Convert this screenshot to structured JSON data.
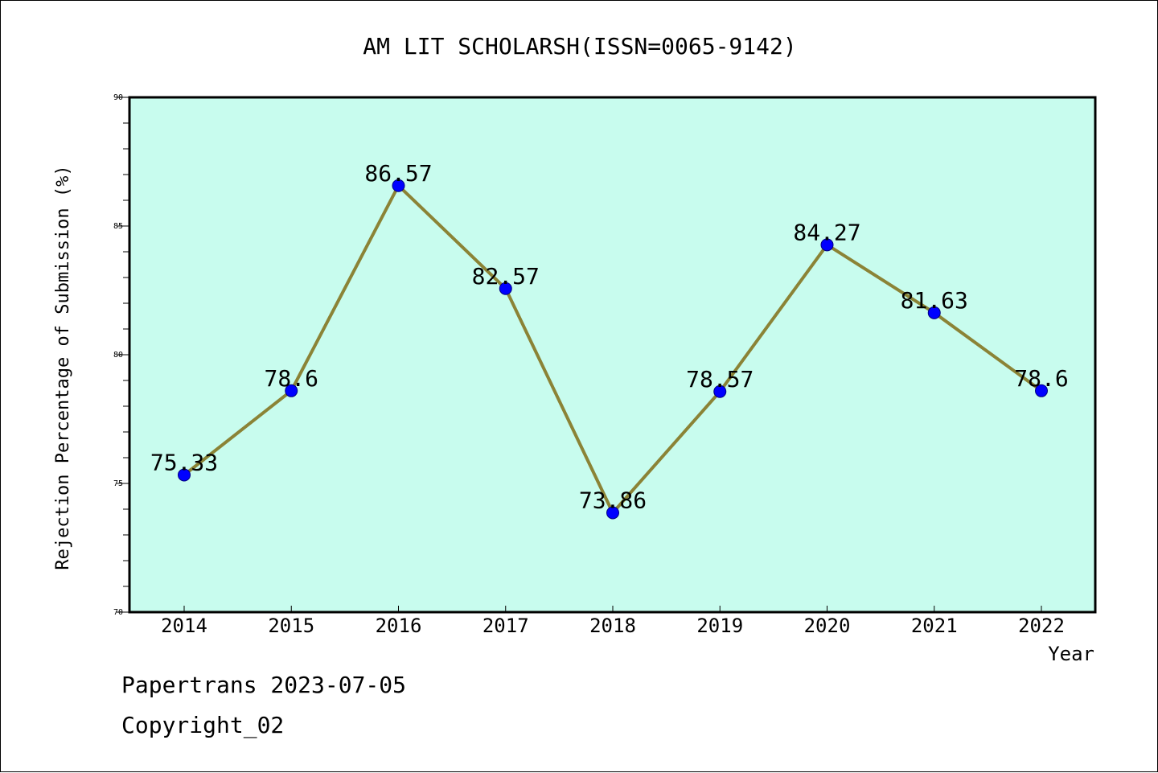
{
  "chart_data": {
    "type": "line",
    "title": "AM LIT SCHOLARSH(ISSN=0065-9142)",
    "xlabel": "Year",
    "ylabel": "Rejection Percentage of Submission (%)",
    "ylim": [
      70,
      90
    ],
    "y_major_ticks": [
      70,
      75,
      80,
      85,
      90
    ],
    "y_minor_step": 1,
    "categories": [
      "2014",
      "2015",
      "2016",
      "2017",
      "2018",
      "2019",
      "2020",
      "2021",
      "2022"
    ],
    "values": [
      75.33,
      78.6,
      86.57,
      82.57,
      73.86,
      78.57,
      84.27,
      81.63,
      78.6
    ],
    "data_labels": [
      "75.33",
      "78.6",
      "86.57",
      "82.57",
      "73.86",
      "78.57",
      "84.27",
      "81.63",
      "78.6"
    ],
    "grid": false,
    "colors": {
      "plot_background": "#c8fcee",
      "line": "#8b8336",
      "marker": "#0000ff",
      "marker_edge": "#000080"
    }
  },
  "footer": {
    "line1": "Papertrans 2023-07-05",
    "line2": "Copyright_02"
  }
}
